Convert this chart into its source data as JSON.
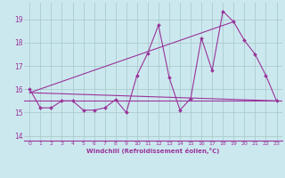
{
  "xlabel": "Windchill (Refroidissement éolien,°C)",
  "bg_color": "#cce8ef",
  "line_color": "#993399",
  "grid_color": "#aacccc",
  "xlim": [
    -0.5,
    23.5
  ],
  "ylim": [
    13.8,
    19.7
  ],
  "yticks": [
    14,
    15,
    16,
    17,
    18,
    19
  ],
  "xticks": [
    0,
    1,
    2,
    3,
    4,
    5,
    6,
    7,
    8,
    9,
    10,
    11,
    12,
    13,
    14,
    15,
    16,
    17,
    18,
    19,
    20,
    21,
    22,
    23
  ],
  "series1_x": [
    0,
    1,
    2,
    3,
    4,
    5,
    6,
    7,
    8,
    9,
    10,
    11,
    12,
    13,
    14,
    15,
    16,
    17,
    18,
    19,
    20,
    21,
    22,
    23
  ],
  "series1_y": [
    16.0,
    15.2,
    15.2,
    15.5,
    15.5,
    15.1,
    15.1,
    15.2,
    15.55,
    15.0,
    16.6,
    17.55,
    18.75,
    16.5,
    15.1,
    15.6,
    18.2,
    16.8,
    19.35,
    18.9,
    18.1,
    17.5,
    16.6,
    15.5
  ],
  "hline_y": 15.5,
  "trend1_x": [
    0,
    23
  ],
  "trend1_y": [
    15.85,
    15.5
  ],
  "trend2_x": [
    0,
    19
  ],
  "trend2_y": [
    15.85,
    18.9
  ]
}
